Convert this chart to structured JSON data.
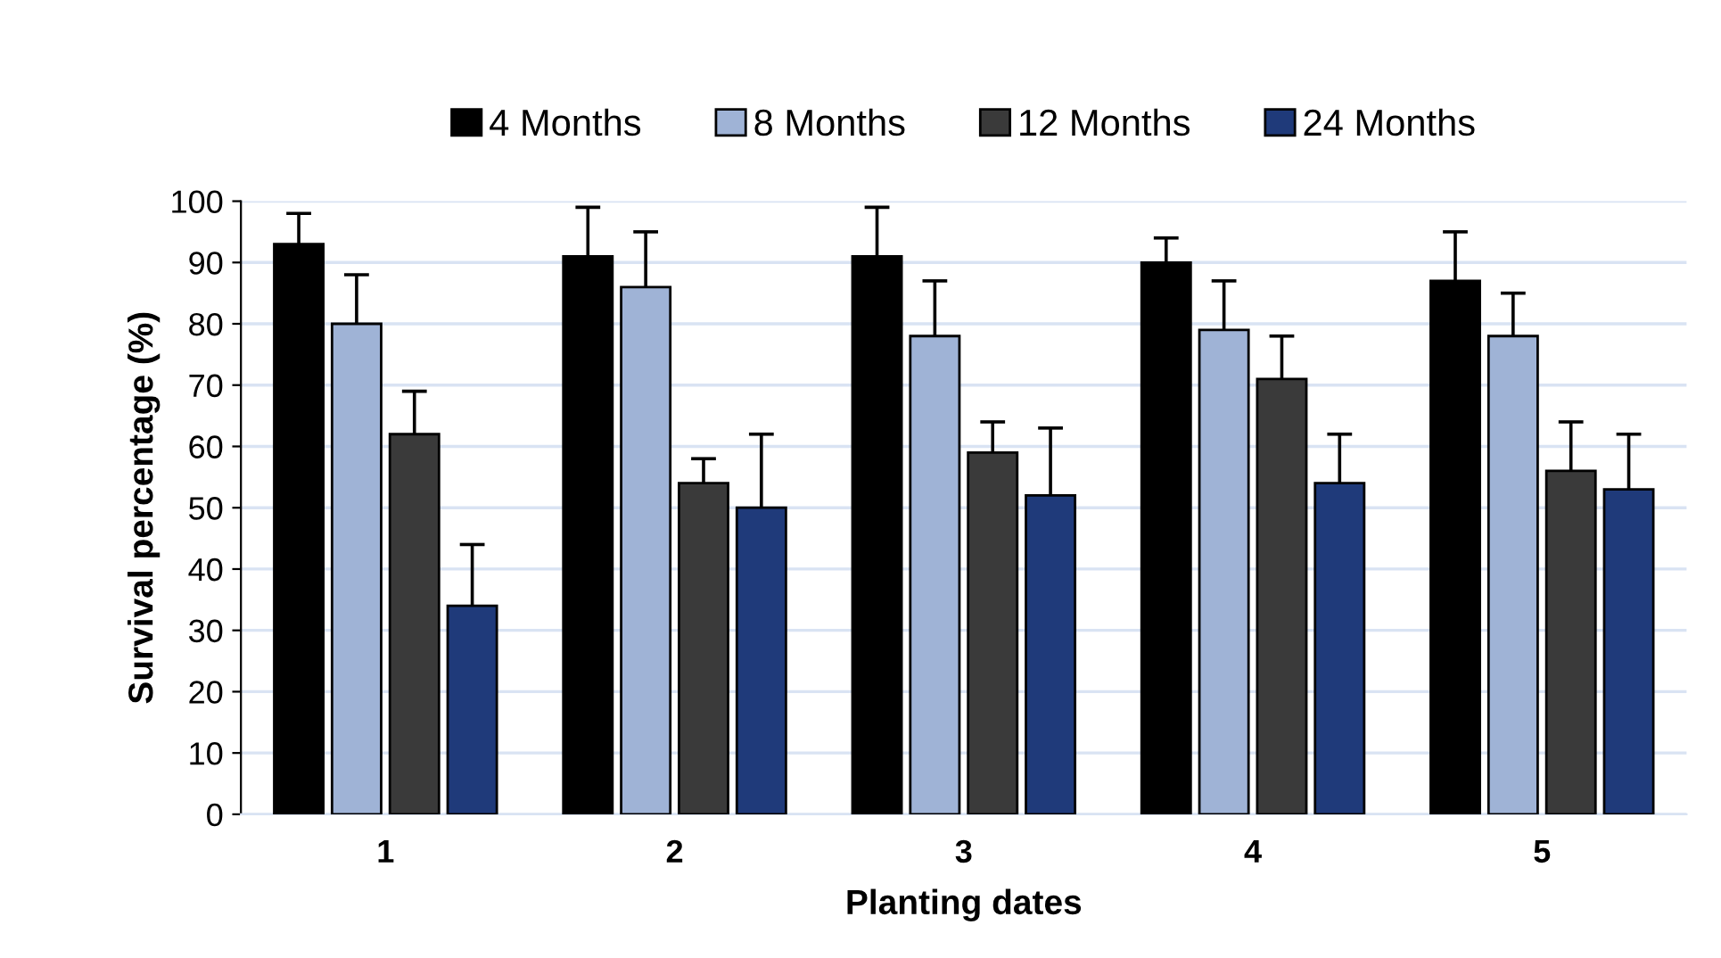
{
  "chart_data": {
    "type": "bar",
    "xlabel": "Planting dates",
    "ylabel": "Survival percentage (%)",
    "categories": [
      "1",
      "2",
      "3",
      "4",
      "5"
    ],
    "series": [
      {
        "name": "4 Months",
        "color": "#000000",
        "values": [
          93,
          91,
          91,
          90,
          87
        ],
        "errors": [
          5,
          8,
          8,
          4,
          8
        ]
      },
      {
        "name": "8 Months",
        "color": "#9fb3d6",
        "values": [
          80,
          86,
          78,
          79,
          78
        ],
        "errors": [
          8,
          9,
          9,
          8,
          7
        ]
      },
      {
        "name": "12 Months",
        "color": "#3a3a3a",
        "values": [
          62,
          54,
          59,
          71,
          56
        ],
        "errors": [
          7,
          4,
          5,
          7,
          8
        ]
      },
      {
        "name": "24 Months",
        "color": "#1f3a7a",
        "values": [
          34,
          50,
          52,
          54,
          53
        ],
        "errors": [
          10,
          12,
          11,
          8,
          9
        ]
      }
    ],
    "ylim": [
      0,
      100
    ],
    "yticks": [
      0,
      10,
      20,
      30,
      40,
      50,
      60,
      70,
      80,
      90,
      100
    ],
    "grid": "y",
    "legend": "top"
  }
}
